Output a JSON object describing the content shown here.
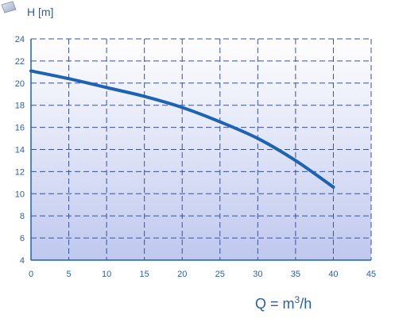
{
  "chart_data": {
    "type": "line",
    "title": "",
    "ylabel": "H [m]",
    "xlabel_main": "Q = m",
    "xlabel_sup": "3",
    "xlabel_tail": "/h",
    "xlim": [
      0,
      45
    ],
    "ylim": [
      4,
      24
    ],
    "x_ticks": [
      0,
      5,
      10,
      15,
      20,
      25,
      30,
      35,
      40,
      45
    ],
    "y_ticks": [
      4,
      6,
      8,
      10,
      12,
      14,
      16,
      18,
      20,
      22,
      24
    ],
    "grid": true,
    "series": [
      {
        "x": [
          0,
          5,
          10,
          15,
          20,
          25,
          30,
          35,
          40
        ],
        "y": [
          21.1,
          20.4,
          19.6,
          18.8,
          17.8,
          16.5,
          15.0,
          13.0,
          10.6
        ]
      }
    ],
    "colors": {
      "line": "#1d63b3",
      "grid": "#3a4fa0",
      "plot_bg_top": "#ffffff",
      "plot_bg_bottom": "#bfc8ee",
      "text": "#2a5fa8",
      "axis": "#1d63b3"
    }
  }
}
